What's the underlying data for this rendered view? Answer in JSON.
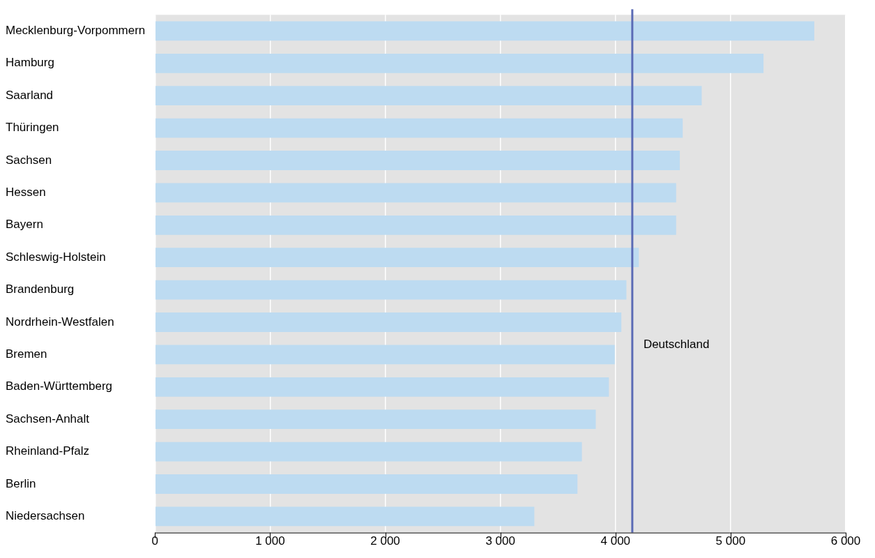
{
  "chart_data": {
    "type": "bar",
    "orientation": "horizontal",
    "categories": [
      "Mecklenburg-Vorpommern",
      "Hamburg",
      "Saarland",
      "Thüringen",
      "Sachsen",
      "Hessen",
      "Bayern",
      "Schleswig-Holstein",
      "Brandenburg",
      "Nordrhein-Westfalen",
      "Bremen",
      "Baden-Württemberg",
      "Sachsen-Anhalt",
      "Rheinland-Pfalz",
      "Berlin",
      "Niedersachsen"
    ],
    "values": [
      5727,
      5286,
      4749,
      4584,
      4559,
      4527,
      4527,
      4203,
      4095,
      4051,
      3994,
      3943,
      3829,
      3708,
      3670,
      3295
    ],
    "color": "#bddbf1",
    "xlim": [
      0,
      6000
    ],
    "xticks": [
      0,
      {
        "value": 1000,
        "label": "1 000"
      },
      {
        "value": 2000,
        "label": "2 000"
      },
      {
        "value": 3000,
        "label": "3 000"
      },
      {
        "value": 4000,
        "label": "4 000"
      },
      {
        "value": 5000,
        "label": "5 000"
      },
      {
        "value": 6000,
        "label": "6 000"
      }
    ],
    "grid": "x",
    "ref_lines": [
      {
        "axis": "x",
        "value": 4146,
        "label": "Deutschland",
        "color": "#5b6bb5"
      }
    ]
  }
}
